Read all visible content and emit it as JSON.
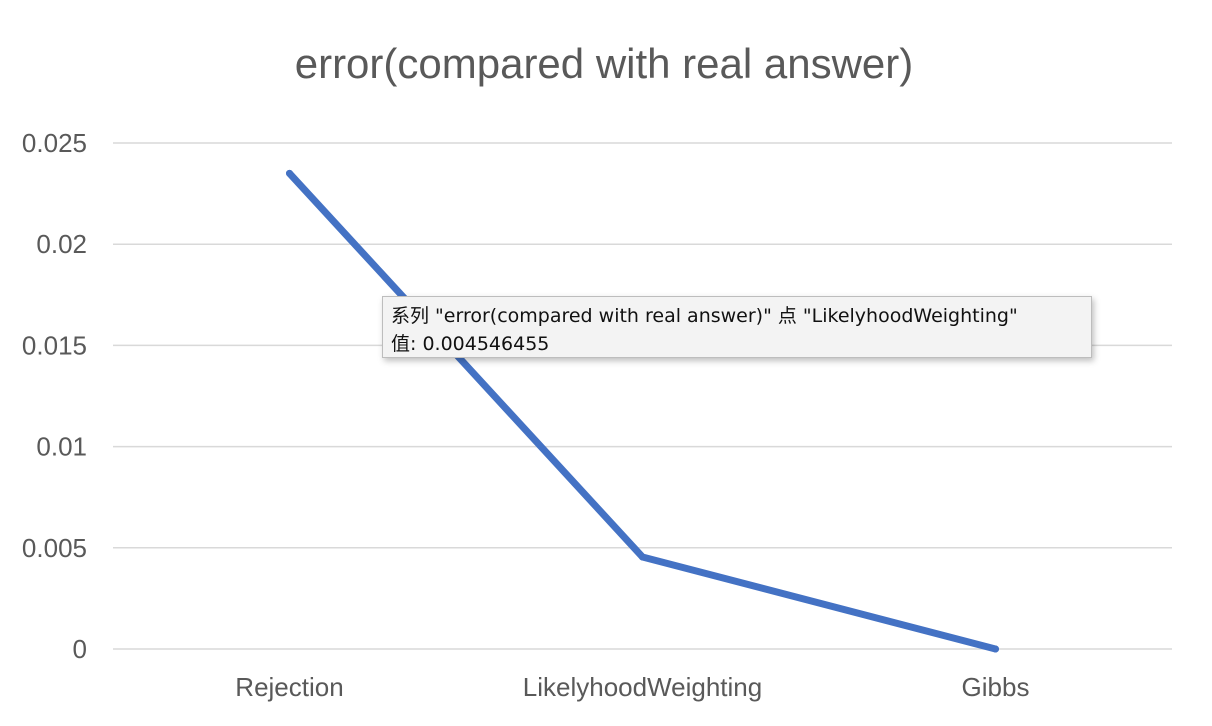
{
  "chart_data": {
    "type": "line",
    "title": "error(compared with real answer)",
    "xlabel": "",
    "ylabel": "",
    "categories": [
      "Rejection",
      "LikelyhoodWeighting",
      "Gibbs"
    ],
    "series": [
      {
        "name": "error(compared with real answer)",
        "values": [
          0.0235,
          0.004546455,
          0
        ],
        "color": "#4472C4"
      }
    ],
    "ylim": [
      0,
      0.025
    ],
    "yticks": [
      "0",
      "0.005",
      "0.01",
      "0.015",
      "0.02",
      "0.025"
    ],
    "ytick_values": [
      0,
      0.005,
      0.01,
      0.015,
      0.02,
      0.025
    ],
    "grid": true,
    "legend": "none"
  },
  "tooltip": {
    "line1": "系列 \"error(compared with real answer)\" 点 \"LikelyhoodWeighting\"",
    "line2": "值: 0.004546455"
  },
  "colors": {
    "gridline": "#d9d9d9",
    "axis_text": "#595959",
    "title_text": "#595959"
  }
}
